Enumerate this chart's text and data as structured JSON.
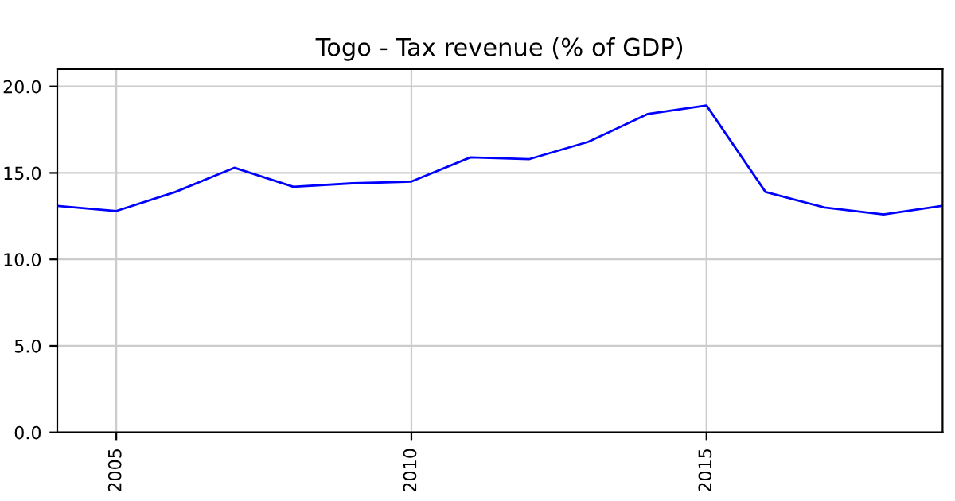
{
  "chart_data": {
    "type": "line",
    "title": "Togo - Tax revenue (% of GDP)",
    "x": [
      2004,
      2005,
      2006,
      2007,
      2008,
      2009,
      2010,
      2011,
      2012,
      2013,
      2014,
      2015,
      2016,
      2017,
      2018,
      2019
    ],
    "series": [
      {
        "color": "#0000ff",
        "values": [
          13.1,
          12.8,
          13.9,
          15.3,
          14.2,
          14.4,
          14.5,
          15.9,
          15.8,
          16.8,
          18.4,
          18.9,
          13.9,
          13.0,
          12.6,
          13.1
        ]
      }
    ],
    "xlim": [
      2004,
      2019
    ],
    "xticks": [
      2005,
      2010,
      2015
    ],
    "ylim": [
      0,
      21
    ],
    "yticks": [
      {
        "value": 0,
        "label": "0.0"
      },
      {
        "value": 5,
        "label": "5.0"
      },
      {
        "value": 10,
        "label": "10.0"
      },
      {
        "value": 15,
        "label": "15.0"
      },
      {
        "value": 20,
        "label": "20.0"
      }
    ],
    "grid": true,
    "legend": false,
    "marker": "none",
    "line_style": "solid"
  }
}
